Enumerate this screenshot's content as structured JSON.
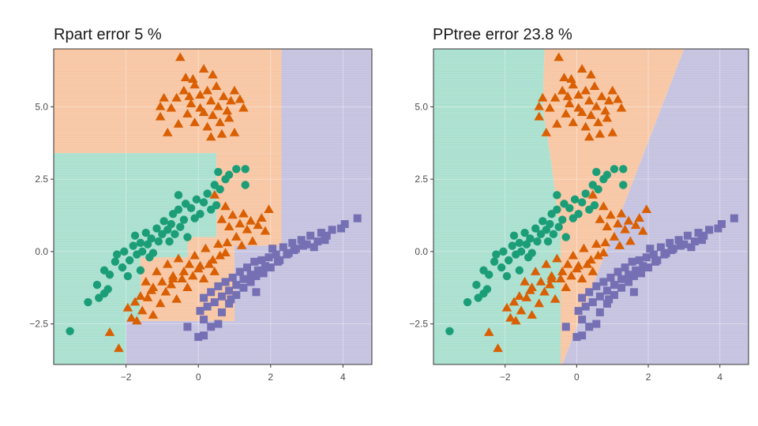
{
  "panels": [
    {
      "title": "Rpart error 5 %"
    },
    {
      "title": "PPtree error 23.8 %"
    }
  ],
  "colors": {
    "class_green": "#1b9e77",
    "class_orange": "#d95f02",
    "class_purple": "#7570b3",
    "region_green": "#a8dfce",
    "region_orange": "#f7c6a3",
    "region_purple": "#c4c1e0"
  },
  "chart_data": [
    {
      "type": "scatter",
      "title": "Rpart error 5 %",
      "xlim": [
        -4,
        4.8
      ],
      "ylim": [
        -3.9,
        7.0
      ],
      "x_ticks": [
        -2,
        0,
        2,
        4
      ],
      "y_ticks": [
        -2.5,
        0.0,
        2.5,
        5.0
      ],
      "x_tick_labels": [
        "−2",
        "0",
        "2",
        "4"
      ],
      "y_tick_labels": [
        "−2.5",
        "0.0",
        "2.5",
        "5.0"
      ],
      "grid": true,
      "regions": [
        {
          "class": "orange",
          "x": [
            -4,
            2.3
          ],
          "y": [
            3.4,
            7.0
          ]
        },
        {
          "class": "purple",
          "x": [
            2.3,
            4.8
          ],
          "y": [
            -3.9,
            7.0
          ]
        },
        {
          "class": "green",
          "x": [
            -4,
            0.5
          ],
          "y": [
            0.5,
            3.4
          ]
        },
        {
          "class": "orange",
          "x": [
            0.5,
            2.3
          ],
          "y": [
            0.5,
            3.4
          ]
        },
        {
          "class": "purple",
          "x": [
            1.0,
            2.3
          ],
          "y": [
            -3.9,
            0.2
          ]
        },
        {
          "class": "orange",
          "x": [
            1.0,
            2.3
          ],
          "y": [
            0.2,
            0.5
          ]
        },
        {
          "class": "green",
          "x": [
            -4,
            -1.6
          ],
          "y": [
            -3.9,
            0.5
          ]
        },
        {
          "class": "orange",
          "x": [
            -1.6,
            1.0
          ],
          "y": [
            -2.4,
            0.5
          ]
        },
        {
          "class": "green",
          "x": [
            -1.6,
            -0.3
          ],
          "y": [
            -0.2,
            0.5
          ]
        },
        {
          "class": "purple",
          "x": [
            -2.0,
            1.0
          ],
          "y": [
            -3.9,
            -2.4
          ]
        },
        {
          "class": "green",
          "x": [
            -4,
            -2.0
          ],
          "y": [
            -3.9,
            -2.4
          ]
        }
      ]
    },
    {
      "type": "scatter",
      "title": "PPtree error 23.8 %",
      "xlim": [
        -4,
        4.8
      ],
      "ylim": [
        -3.9,
        7.0
      ],
      "x_ticks": [
        -2,
        0,
        2,
        4
      ],
      "y_ticks": [
        -2.5,
        0.0,
        2.5,
        5.0
      ],
      "x_tick_labels": [
        "−2",
        "0",
        "2",
        "4"
      ],
      "y_tick_labels": [
        "−2.5",
        "0.0",
        "2.5",
        "5.0"
      ],
      "grid": true,
      "regions": [
        {
          "class": "green",
          "polygon": [
            [
              -4,
              7.0
            ],
            [
              -0.9,
              7.0
            ],
            [
              -0.95,
              5.0
            ],
            [
              -0.7,
              3.0
            ],
            [
              -0.45,
              0.5
            ],
            [
              -0.45,
              -2.3
            ],
            [
              -0.45,
              -3.9
            ],
            [
              -4,
              -3.9
            ]
          ]
        },
        {
          "class": "orange",
          "polygon": [
            [
              -0.9,
              7.0
            ],
            [
              3.0,
              7.0
            ],
            [
              -0.4,
              -3.9
            ],
            [
              -0.45,
              -3.9
            ],
            [
              -0.45,
              -2.3
            ],
            [
              -0.45,
              0.5
            ],
            [
              -0.7,
              3.0
            ],
            [
              -0.95,
              5.0
            ]
          ]
        },
        {
          "class": "purple",
          "polygon": [
            [
              3.0,
              7.0
            ],
            [
              4.8,
              7.0
            ],
            [
              4.8,
              -3.9
            ],
            [
              -0.4,
              -3.9
            ]
          ]
        }
      ]
    }
  ],
  "points": {
    "green": [
      [
        -3.55,
        -2.75
      ],
      [
        -3.05,
        -1.75
      ],
      [
        -2.75,
        -1.6
      ],
      [
        -2.8,
        -1.15
      ],
      [
        -2.6,
        -0.65
      ],
      [
        -2.5,
        -1.3
      ],
      [
        -2.45,
        -0.8
      ],
      [
        -2.3,
        -0.35
      ],
      [
        -2.25,
        -0.1
      ],
      [
        -2.1,
        -0.55
      ],
      [
        -2.05,
        0.0
      ],
      [
        -1.95,
        -0.85
      ],
      [
        -1.9,
        -0.3
      ],
      [
        -1.8,
        0.2
      ],
      [
        -1.75,
        0.55
      ],
      [
        -1.7,
        -0.1
      ],
      [
        -1.6,
        0.3
      ],
      [
        -1.55,
        0.0
      ],
      [
        -1.45,
        0.65
      ],
      [
        -1.4,
        0.25
      ],
      [
        -1.3,
        0.45
      ],
      [
        -1.25,
        -0.05
      ],
      [
        -1.15,
        0.8
      ],
      [
        -1.1,
        0.35
      ],
      [
        -1.0,
        0.6
      ],
      [
        -0.95,
        1.05
      ],
      [
        -0.85,
        0.75
      ],
      [
        -0.8,
        0.35
      ],
      [
        -0.75,
        0.95
      ],
      [
        -0.7,
        1.3
      ],
      [
        -0.65,
        0.6
      ],
      [
        -0.55,
        1.45
      ],
      [
        -0.5,
        0.85
      ],
      [
        -0.4,
        1.1
      ],
      [
        -0.35,
        1.65
      ],
      [
        -0.3,
        0.5
      ],
      [
        -0.2,
        1.5
      ],
      [
        -0.1,
        1.15
      ],
      [
        -0.05,
        1.8
      ],
      [
        0.05,
        1.3
      ],
      [
        0.15,
        1.7
      ],
      [
        0.25,
        2.0
      ],
      [
        0.35,
        1.45
      ],
      [
        0.45,
        2.3
      ],
      [
        0.5,
        1.6
      ],
      [
        0.55,
        2.75
      ],
      [
        0.6,
        2.15
      ],
      [
        0.75,
        2.5
      ],
      [
        0.85,
        2.65
      ],
      [
        1.05,
        2.85
      ],
      [
        1.3,
        2.85
      ],
      [
        1.3,
        2.3
      ],
      [
        -1.6,
        -0.65
      ],
      [
        -0.55,
        1.95
      ],
      [
        -1.35,
        -0.2
      ],
      [
        -2.6,
        -1.45
      ]
    ],
    "orange": [
      [
        -0.5,
        6.7
      ],
      [
        -0.35,
        6.0
      ],
      [
        -0.15,
        5.95
      ],
      [
        0.4,
        6.1
      ],
      [
        -0.6,
        5.3
      ],
      [
        -0.4,
        5.55
      ],
      [
        -0.2,
        5.1
      ],
      [
        -0.1,
        5.75
      ],
      [
        0.05,
        5.4
      ],
      [
        0.15,
        4.8
      ],
      [
        0.25,
        5.55
      ],
      [
        0.35,
        5.2
      ],
      [
        0.5,
        5.7
      ],
      [
        0.55,
        5.0
      ],
      [
        0.7,
        5.35
      ],
      [
        0.8,
        4.85
      ],
      [
        0.9,
        5.2
      ],
      [
        1.0,
        5.55
      ],
      [
        1.15,
        5.25
      ],
      [
        -1.05,
        4.65
      ],
      [
        -0.95,
        5.3
      ],
      [
        -0.75,
        4.95
      ],
      [
        -0.55,
        4.4
      ],
      [
        -0.3,
        4.75
      ],
      [
        -0.1,
        4.45
      ],
      [
        0.05,
        4.95
      ],
      [
        0.25,
        4.3
      ],
      [
        0.4,
        4.7
      ],
      [
        0.6,
        4.45
      ],
      [
        0.85,
        4.6
      ],
      [
        1.0,
        4.1
      ],
      [
        -1.05,
        5.0
      ],
      [
        -0.85,
        4.1
      ],
      [
        0.35,
        3.95
      ],
      [
        1.25,
        4.95
      ],
      [
        -0.25,
        5.35
      ],
      [
        0.15,
        6.3
      ],
      [
        0.65,
        4.05
      ],
      [
        0.45,
        1.95
      ],
      [
        0.65,
        1.1
      ],
      [
        0.75,
        1.55
      ],
      [
        0.85,
        0.85
      ],
      [
        0.95,
        1.25
      ],
      [
        1.05,
        0.5
      ],
      [
        1.15,
        0.95
      ],
      [
        1.25,
        1.3
      ],
      [
        1.35,
        0.75
      ],
      [
        1.45,
        1.05
      ],
      [
        1.5,
        0.35
      ],
      [
        1.65,
        0.9
      ],
      [
        1.75,
        1.15
      ],
      [
        1.95,
        1.45
      ],
      [
        1.85,
        0.7
      ],
      [
        0.55,
        0.25
      ],
      [
        0.75,
        -0.05
      ],
      [
        0.4,
        -0.3
      ],
      [
        0.2,
        0.1
      ],
      [
        0.05,
        -0.5
      ],
      [
        -0.1,
        -0.15
      ],
      [
        -0.25,
        -0.45
      ],
      [
        -0.4,
        -0.7
      ],
      [
        -0.55,
        -0.25
      ],
      [
        -0.7,
        -0.85
      ],
      [
        -0.85,
        -0.45
      ],
      [
        -1.0,
        -1.05
      ],
      [
        -1.15,
        -0.7
      ],
      [
        -1.3,
        -1.35
      ],
      [
        -1.45,
        -1.05
      ],
      [
        -1.6,
        -1.55
      ],
      [
        -1.75,
        -1.75
      ],
      [
        -1.85,
        -2.3
      ],
      [
        -1.95,
        -1.95
      ],
      [
        -1.7,
        -2.4
      ],
      [
        -1.55,
        -2.05
      ],
      [
        -1.4,
        -1.6
      ],
      [
        -1.25,
        -2.2
      ],
      [
        -1.05,
        -1.8
      ],
      [
        -0.9,
        -1.4
      ],
      [
        -0.75,
        -1.15
      ],
      [
        -0.6,
        -1.65
      ],
      [
        -0.45,
        -0.95
      ],
      [
        -0.3,
        -1.25
      ],
      [
        -0.15,
        -0.85
      ],
      [
        0.0,
        -0.6
      ],
      [
        0.15,
        -0.95
      ],
      [
        0.3,
        -0.45
      ],
      [
        0.45,
        -0.7
      ],
      [
        0.6,
        -0.15
      ],
      [
        0.8,
        0.3
      ],
      [
        -2.45,
        -2.8
      ],
      [
        -2.2,
        -3.35
      ],
      [
        -0.7,
        -0.95
      ],
      [
        -1.25,
        -1.25
      ],
      [
        1.2,
        0.2
      ]
    ],
    "purple": [
      [
        4.4,
        1.15
      ],
      [
        4.05,
        0.95
      ],
      [
        3.95,
        0.8
      ],
      [
        3.7,
        0.75
      ],
      [
        3.55,
        0.55
      ],
      [
        3.4,
        0.65
      ],
      [
        3.3,
        0.35
      ],
      [
        3.1,
        0.55
      ],
      [
        3.0,
        0.25
      ],
      [
        2.85,
        0.4
      ],
      [
        2.7,
        0.1
      ],
      [
        2.6,
        0.3
      ],
      [
        2.5,
        -0.05
      ],
      [
        2.35,
        0.15
      ],
      [
        2.25,
        -0.3
      ],
      [
        2.15,
        -0.1
      ],
      [
        2.05,
        0.1
      ],
      [
        1.95,
        -0.2
      ],
      [
        1.85,
        -0.5
      ],
      [
        1.75,
        -0.3
      ],
      [
        1.65,
        -0.65
      ],
      [
        1.55,
        -0.35
      ],
      [
        1.45,
        -0.8
      ],
      [
        1.35,
        -0.55
      ],
      [
        1.25,
        -0.95
      ],
      [
        1.15,
        -0.7
      ],
      [
        1.05,
        -1.15
      ],
      [
        0.95,
        -0.9
      ],
      [
        0.85,
        -1.35
      ],
      [
        0.75,
        -1.05
      ],
      [
        0.65,
        -1.55
      ],
      [
        0.55,
        -1.2
      ],
      [
        0.45,
        -1.75
      ],
      [
        0.35,
        -1.4
      ],
      [
        0.25,
        -1.9
      ],
      [
        0.15,
        -1.6
      ],
      [
        0.05,
        -2.05
      ],
      [
        0.15,
        -2.35
      ],
      [
        0.35,
        -2.6
      ],
      [
        0.55,
        -2.5
      ],
      [
        0.65,
        -2.1
      ],
      [
        0.85,
        -1.8
      ],
      [
        1.05,
        -1.5
      ],
      [
        1.25,
        -1.25
      ],
      [
        1.45,
        -1.05
      ],
      [
        1.6,
        -0.85
      ],
      [
        1.8,
        -0.75
      ],
      [
        2.0,
        -0.55
      ],
      [
        2.2,
        -0.35
      ],
      [
        2.45,
        -0.1
      ],
      [
        2.65,
        0.05
      ],
      [
        2.9,
        0.2
      ],
      [
        3.2,
        0.15
      ],
      [
        3.5,
        0.4
      ],
      [
        0.0,
        -2.95
      ],
      [
        0.15,
        -2.9
      ],
      [
        -0.3,
        -2.6
      ],
      [
        0.9,
        -1.65
      ],
      [
        1.6,
        -1.4
      ]
    ]
  }
}
